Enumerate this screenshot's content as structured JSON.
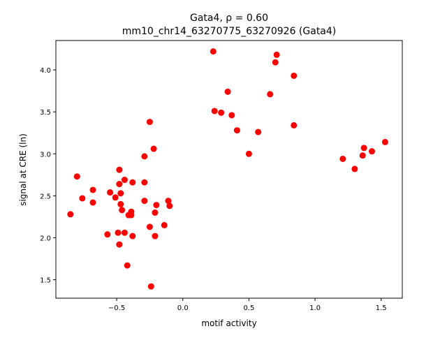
{
  "chart_data": {
    "type": "scatter",
    "title_line1": "Gata4, ρ = 0.60",
    "title_line2": "mm10_chr14_63270775_63270926 (Gata4)",
    "xlabel": "motif activity",
    "ylabel": "signal at CRE (ln)",
    "xlim": [
      -0.96,
      1.66
    ],
    "ylim": [
      1.28,
      4.35
    ],
    "xticks": [
      -0.5,
      0.0,
      0.5,
      1.0,
      1.5
    ],
    "xtick_labels": [
      "−0.5",
      "0.0",
      "0.5",
      "1.0",
      "1.5"
    ],
    "yticks": [
      1.5,
      2.0,
      2.5,
      3.0,
      3.5,
      4.0
    ],
    "ytick_labels": [
      "1.5",
      "2.0",
      "2.5",
      "3.0",
      "3.5",
      "4.0"
    ],
    "marker_color": "#ff0000",
    "grid": false,
    "points": [
      [
        -0.85,
        2.28
      ],
      [
        -0.8,
        2.73
      ],
      [
        -0.76,
        2.47
      ],
      [
        -0.68,
        2.57
      ],
      [
        -0.68,
        2.42
      ],
      [
        -0.57,
        2.04
      ],
      [
        -0.55,
        2.54
      ],
      [
        -0.51,
        2.48
      ],
      [
        -0.48,
        2.81
      ],
      [
        -0.48,
        2.64
      ],
      [
        -0.47,
        2.53
      ],
      [
        -0.49,
        2.06
      ],
      [
        -0.47,
        2.4
      ],
      [
        -0.46,
        2.33
      ],
      [
        -0.44,
        2.69
      ],
      [
        -0.48,
        1.92
      ],
      [
        -0.44,
        2.06
      ],
      [
        -0.42,
        1.67
      ],
      [
        -0.41,
        2.27
      ],
      [
        -0.39,
        2.27
      ],
      [
        -0.39,
        2.31
      ],
      [
        -0.38,
        2.66
      ],
      [
        -0.38,
        2.02
      ],
      [
        -0.29,
        2.97
      ],
      [
        -0.29,
        2.66
      ],
      [
        -0.29,
        2.44
      ],
      [
        -0.25,
        3.38
      ],
      [
        -0.25,
        2.13
      ],
      [
        -0.24,
        1.42
      ],
      [
        -0.22,
        3.06
      ],
      [
        -0.2,
        2.39
      ],
      [
        -0.21,
        2.3
      ],
      [
        -0.21,
        2.02
      ],
      [
        -0.14,
        2.15
      ],
      [
        -0.11,
        2.44
      ],
      [
        -0.1,
        2.38
      ],
      [
        0.23,
        4.22
      ],
      [
        0.24,
        3.51
      ],
      [
        0.29,
        3.49
      ],
      [
        0.34,
        3.74
      ],
      [
        0.37,
        3.46
      ],
      [
        0.41,
        3.28
      ],
      [
        0.5,
        3.0
      ],
      [
        0.57,
        3.26
      ],
      [
        0.66,
        3.71
      ],
      [
        0.7,
        4.09
      ],
      [
        0.71,
        4.18
      ],
      [
        0.84,
        3.93
      ],
      [
        0.84,
        3.34
      ],
      [
        1.21,
        2.94
      ],
      [
        1.3,
        2.82
      ],
      [
        1.36,
        2.98
      ],
      [
        1.37,
        3.07
      ],
      [
        1.43,
        3.03
      ],
      [
        1.53,
        3.14
      ]
    ]
  }
}
